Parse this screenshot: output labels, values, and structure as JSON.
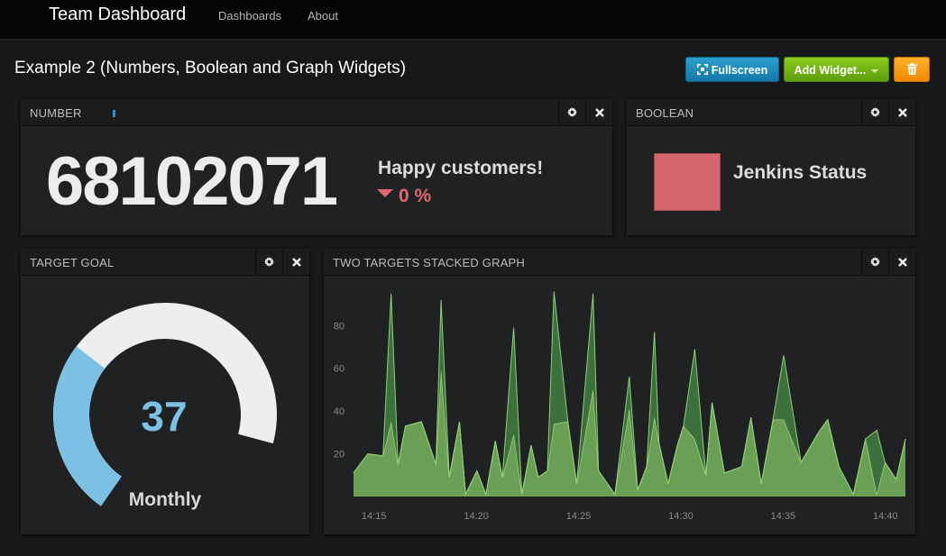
{
  "navbar": {
    "brand": "Team Dashboard",
    "links": [
      "Dashboards",
      "About"
    ]
  },
  "header": {
    "title": "Example 2 (Numbers, Boolean and Graph Widgets)",
    "fullscreen_label": "Fullscreen",
    "add_widget_label": "Add Widget...",
    "delete_icon": "trash-icon"
  },
  "widgets": {
    "number": {
      "title": "NUMBER",
      "value": "68102071",
      "label": "Happy customers!",
      "change": "0 %"
    },
    "boolean": {
      "title": "BOOLEAN",
      "label": "Jenkins Status",
      "status_color": "#d4646d"
    },
    "target": {
      "title": "TARGET GOAL",
      "value": "37",
      "label": "Monthly",
      "fill_fraction": 0.37,
      "fill_color": "#7cc1e4",
      "track_color": "#eeeeee"
    },
    "graph": {
      "title": "TWO TARGETS STACKED GRAPH"
    }
  },
  "chart_data": {
    "type": "area",
    "title": "",
    "xlabel": "",
    "ylabel": "",
    "stacked": true,
    "ylim": [
      0,
      97
    ],
    "yticks": [
      20,
      40,
      60,
      80
    ],
    "xticks": [
      {
        "minute": 14.25,
        "label": "14:15"
      },
      {
        "minute": 19.25,
        "label": "14:20"
      },
      {
        "minute": 24.25,
        "label": "14:25"
      },
      {
        "minute": 29.25,
        "label": "14:30"
      },
      {
        "minute": 34.25,
        "label": "14:35"
      },
      {
        "minute": 39.25,
        "label": "14:40"
      }
    ],
    "x_minutes": [
      13.25,
      13.95,
      14.69,
      15.09,
      15.43,
      15.79,
      16.57,
      17.28,
      17.53,
      17.93,
      18.43,
      18.73,
      19.28,
      19.72,
      20.18,
      20.53,
      21.08,
      21.48,
      21.93,
      22.28,
      22.73,
      23.05,
      23.73,
      24.16,
      24.96,
      25.23,
      26.03,
      26.73,
      27.14,
      27.58,
      27.96,
      28.18,
      28.63,
      29.08,
      29.38,
      29.93,
      30.48,
      30.78,
      31.38,
      32.23,
      32.68,
      33.18,
      33.76,
      34.28,
      35.13,
      35.98,
      36.43,
      36.98,
      37.68,
      38.28,
      38.83,
      39.23,
      39.78,
      40.23
    ],
    "series": [
      {
        "name": "",
        "color": "#6fa85a",
        "values": [
          11,
          20,
          19,
          35,
          15,
          33,
          35,
          15,
          59,
          9,
          35,
          1,
          12,
          1,
          26,
          9,
          29,
          1,
          24,
          9,
          12,
          34,
          35,
          6,
          50,
          12,
          1,
          41,
          3,
          14,
          37,
          25,
          6,
          24,
          33,
          27,
          10,
          44,
          11,
          14,
          37,
          6,
          36,
          36,
          16,
          30,
          36,
          14,
          1,
          27,
          1,
          16,
          8,
          27
        ]
      },
      {
        "name": "",
        "color": "#3f7a40",
        "values": [
          0,
          0,
          0,
          60,
          0,
          0,
          0,
          0,
          33,
          0,
          0,
          0,
          0,
          0,
          0,
          0,
          50,
          0,
          0,
          0,
          0,
          62,
          0,
          0,
          45,
          0,
          0,
          15,
          0,
          0,
          40,
          0,
          0,
          0,
          0,
          42,
          0,
          0,
          0,
          0,
          0,
          0,
          0,
          30,
          0,
          0,
          0,
          0,
          0,
          0,
          30,
          0,
          0,
          0
        ]
      }
    ]
  }
}
